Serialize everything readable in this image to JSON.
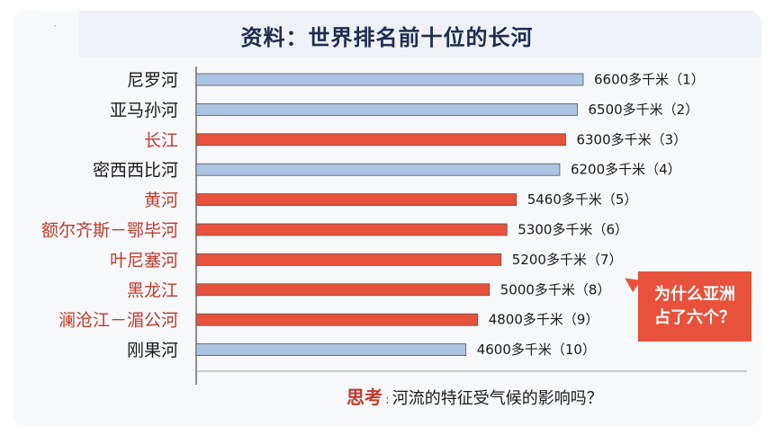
{
  "title": "资料：世界排名前十位的长河",
  "callout": {
    "line1": "为什么亚洲",
    "line2": "占了六个？"
  },
  "question": {
    "prefix": "思考",
    "colon": ":",
    "text": "河流的特征受气候的影响吗？"
  },
  "colors": {
    "bar_default": "#adc3e3",
    "bar_highlight": "#e8513b",
    "label_default": "#1a1a1a",
    "label_highlight": "#c0392b"
  },
  "chart_data": {
    "type": "bar",
    "orientation": "horizontal",
    "categories": [
      "尼罗河",
      "亚马孙河",
      "长江",
      "密西西比河",
      "黄河",
      "额尔齐斯－鄂毕河",
      "叶尼塞河",
      "黑龙江",
      "澜沧江－湄公河",
      "刚果河"
    ],
    "values": [
      6600,
      6500,
      6300,
      6200,
      5460,
      5300,
      5200,
      5000,
      4800,
      4600
    ],
    "value_labels": [
      "6600多千米（1）",
      "6500多千米（2）",
      "6300多千米（3）",
      "6200多千米（4）",
      "5460多千米（5）",
      "5300多千米（6）",
      "5200多千米（7）",
      "5000多千米（8）",
      "4800多千米（9）",
      "4600多千米（10）"
    ],
    "highlighted": [
      false,
      false,
      true,
      false,
      true,
      true,
      true,
      true,
      true,
      false
    ],
    "title": "资料：世界排名前十位的长河",
    "xlabel": "",
    "ylabel": "",
    "xlim": [
      0,
      6600
    ],
    "grid": false
  }
}
